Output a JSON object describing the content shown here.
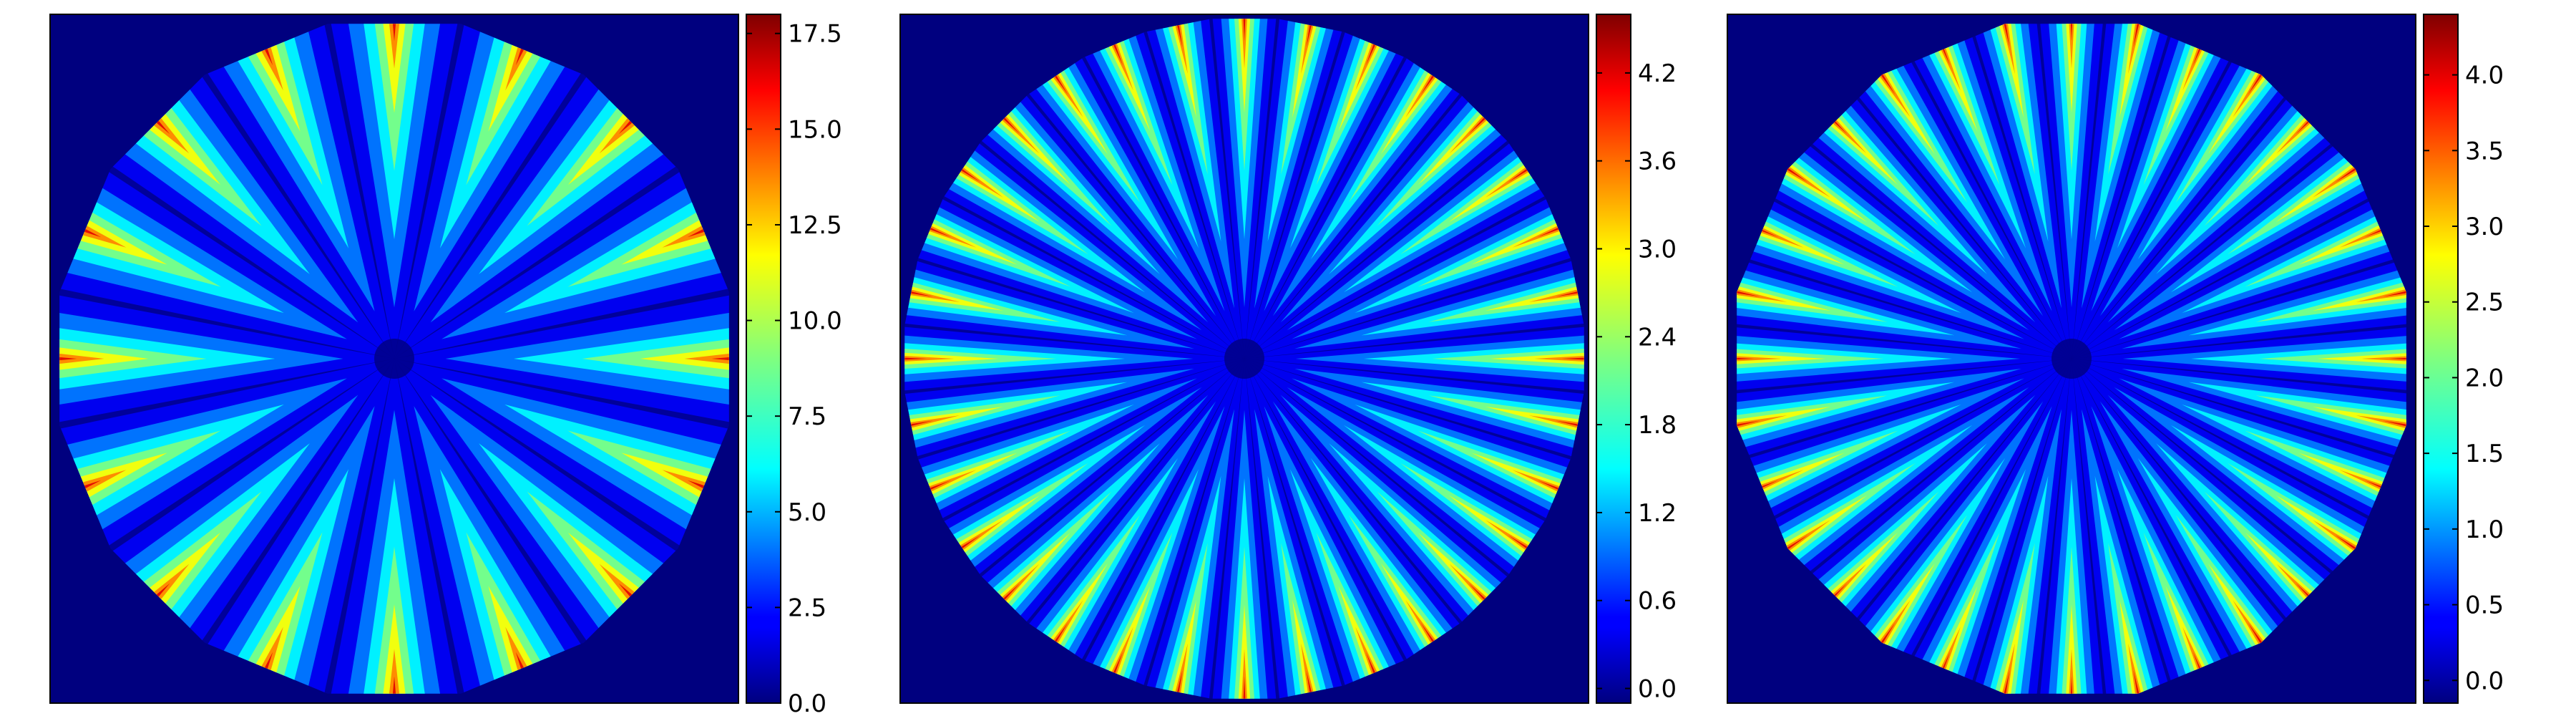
{
  "chart_data": [
    {
      "type": "heatmap",
      "title": "",
      "xlabel": "",
      "ylabel": "",
      "rays": 16,
      "polygon_sides": 16,
      "colormap": "jet",
      "colorbar": {
        "min": 0.0,
        "max": 18.0,
        "ticks": [
          0.0,
          2.5,
          5.0,
          7.5,
          10.0,
          12.5,
          15.0,
          17.5
        ],
        "labels": [
          "0.0",
          "2.5",
          "5.0",
          "7.5",
          "10.0",
          "12.5",
          "15.0",
          "17.5"
        ]
      }
    },
    {
      "type": "heatmap",
      "title": "",
      "xlabel": "",
      "ylabel": "",
      "rays": 32,
      "polygon_sides": 32,
      "colormap": "jet",
      "colorbar": {
        "min": -0.1,
        "max": 4.6,
        "ticks": [
          0.0,
          0.6,
          1.2,
          1.8,
          2.4,
          3.0,
          3.6,
          4.2
        ],
        "labels": [
          "0.0",
          "0.6",
          "1.2",
          "1.8",
          "2.4",
          "3.0",
          "3.6",
          "4.2"
        ]
      }
    },
    {
      "type": "heatmap",
      "title": "",
      "xlabel": "",
      "ylabel": "",
      "rays": 32,
      "polygon_sides": 16,
      "colormap": "jet",
      "colorbar": {
        "min": -0.15,
        "max": 4.4,
        "ticks": [
          0.0,
          0.5,
          1.0,
          1.5,
          2.0,
          2.5,
          3.0,
          3.5,
          4.0
        ],
        "labels": [
          "0.0",
          "0.5",
          "1.0",
          "1.5",
          "2.0",
          "2.5",
          "3.0",
          "3.5",
          "4.0"
        ]
      }
    }
  ],
  "colors": {
    "background": "#00007f",
    "jet_stops": [
      "#00007f",
      "#0000ff",
      "#007fff",
      "#00ffff",
      "#7fff7f",
      "#ffff00",
      "#ff7f00",
      "#ff0000",
      "#7f0000"
    ]
  }
}
